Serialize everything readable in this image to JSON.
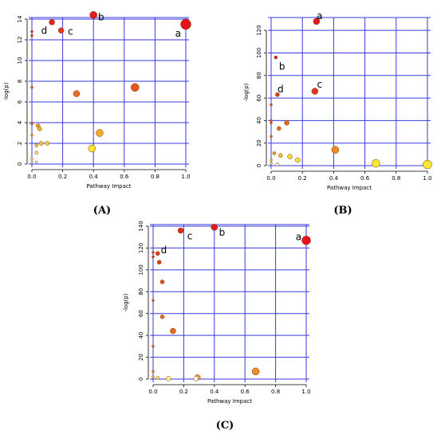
{
  "chart_data": [
    {
      "type": "scatter",
      "panel": "(A)",
      "xlabel": "Pathway Impact",
      "ylabel": "-log(p)",
      "xlim": [
        0,
        1.0
      ],
      "ylim": [
        0,
        14
      ],
      "xticks": [
        "0.0",
        "0.2",
        "0.4",
        "0.6",
        "0.8",
        "1.0"
      ],
      "yticks": [
        "0",
        "2",
        "4",
        "6",
        "8",
        "10",
        "12",
        "14"
      ],
      "grid": true,
      "points": [
        {
          "x": 1.0,
          "y": 13.5,
          "size": 6.5,
          "color": "#e8141c"
        },
        {
          "x": 0.4,
          "y": 14.4,
          "size": 4.5,
          "color": "#e21a1a"
        },
        {
          "x": 0.19,
          "y": 12.9,
          "size": 3.5,
          "color": "#e33a1c"
        },
        {
          "x": 0.13,
          "y": 13.7,
          "size": 3.5,
          "color": "#e2281c"
        },
        {
          "x": 0.0,
          "y": 12.8,
          "size": 1.5,
          "color": "#e2341c"
        },
        {
          "x": 0.0,
          "y": 12.4,
          "size": 1.5,
          "color": "#e2341c"
        },
        {
          "x": 0.0,
          "y": 7.4,
          "size": 1.5,
          "color": "#e8501c"
        },
        {
          "x": 0.67,
          "y": 7.4,
          "size": 5.0,
          "color": "#e8541e"
        },
        {
          "x": 0.29,
          "y": 6.8,
          "size": 4.0,
          "color": "#ea6a22"
        },
        {
          "x": 0.44,
          "y": 3.0,
          "size": 4.5,
          "color": "#f1ac28"
        },
        {
          "x": 0.39,
          "y": 1.5,
          "size": 4.5,
          "color": "#f7e538"
        },
        {
          "x": 0.0,
          "y": 3.9,
          "size": 1.5,
          "color": "#e8501c"
        },
        {
          "x": 0.04,
          "y": 3.7,
          "size": 2.5,
          "color": "#f0a02a"
        },
        {
          "x": 0.05,
          "y": 3.4,
          "size": 2.5,
          "color": "#f1b52e"
        },
        {
          "x": 0.0,
          "y": 2.8,
          "size": 1.5,
          "color": "#f0a02a"
        },
        {
          "x": 0.06,
          "y": 2.0,
          "size": 2.5,
          "color": "#f3c636"
        },
        {
          "x": 0.1,
          "y": 2.0,
          "size": 2.5,
          "color": "#f5d63a"
        },
        {
          "x": 0.03,
          "y": 1.8,
          "size": 2.0,
          "color": "#f5d63a"
        },
        {
          "x": 0.03,
          "y": 1.1,
          "size": 2.0,
          "color": "#f7e76e"
        },
        {
          "x": 0.0,
          "y": 0.5,
          "size": 1.5,
          "color": "#f9f19a"
        },
        {
          "x": 0.0,
          "y": 0.2,
          "size": 1.5,
          "color": "#fdfbe8"
        },
        {
          "x": 0.03,
          "y": 0.2,
          "size": 1.5,
          "color": "#fdfbe8"
        }
      ],
      "annotations": [
        {
          "text": "a",
          "x": 0.95,
          "y": 12.6
        },
        {
          "text": "b",
          "x": 0.45,
          "y": 14.2
        },
        {
          "text": "c",
          "x": 0.25,
          "y": 12.8
        },
        {
          "text": "d",
          "x": 0.08,
          "y": 12.9
        }
      ]
    },
    {
      "type": "scatter",
      "panel": "(B)",
      "xlabel": "Pathway Impact",
      "ylabel": "-log(p)",
      "xlim": [
        0,
        1.0
      ],
      "ylim": [
        0,
        130
      ],
      "xticks": [
        "0.0",
        "0.2",
        "0.4",
        "0.6",
        "0.8",
        "1.0"
      ],
      "yticks": [
        "0",
        "20",
        "40",
        "60",
        "80",
        "100",
        "120"
      ],
      "grid": true,
      "points": [
        {
          "x": 0.29,
          "y": 128,
          "size": 4.0,
          "color": "#e21a1a"
        },
        {
          "x": 0.03,
          "y": 96,
          "size": 2.0,
          "color": "#e2281c"
        },
        {
          "x": 0.28,
          "y": 66,
          "size": 4.0,
          "color": "#e2341c"
        },
        {
          "x": 0.04,
          "y": 63,
          "size": 2.5,
          "color": "#e33a1c"
        },
        {
          "x": 0.0,
          "y": 54,
          "size": 1.5,
          "color": "#e8501c"
        },
        {
          "x": 0.0,
          "y": 40,
          "size": 1.5,
          "color": "#e8501c"
        },
        {
          "x": 0.0,
          "y": 38,
          "size": 1.5,
          "color": "#e8541e"
        },
        {
          "x": 0.1,
          "y": 38,
          "size": 3.0,
          "color": "#ea6a22"
        },
        {
          "x": 0.05,
          "y": 33,
          "size": 2.5,
          "color": "#ea6a22"
        },
        {
          "x": 0.0,
          "y": 26,
          "size": 1.5,
          "color": "#ea6a22"
        },
        {
          "x": 0.41,
          "y": 14,
          "size": 4.5,
          "color": "#ef8c26"
        },
        {
          "x": 0.02,
          "y": 11,
          "size": 2.0,
          "color": "#f0a02a"
        },
        {
          "x": 0.06,
          "y": 9,
          "size": 2.5,
          "color": "#f3c636"
        },
        {
          "x": 0.12,
          "y": 8,
          "size": 3.0,
          "color": "#f5d63a"
        },
        {
          "x": 0.17,
          "y": 5,
          "size": 3.0,
          "color": "#f7e538"
        },
        {
          "x": 0.0,
          "y": 5,
          "size": 1.5,
          "color": "#f3c636"
        },
        {
          "x": 0.0,
          "y": 2,
          "size": 1.5,
          "color": "#f7e76e"
        },
        {
          "x": 0.04,
          "y": 1,
          "size": 2.0,
          "color": "#fdfbe8"
        },
        {
          "x": 0.67,
          "y": 2,
          "size": 5.0,
          "color": "#f7e538"
        },
        {
          "x": 1.0,
          "y": 1,
          "size": 5.5,
          "color": "#f7e538"
        }
      ],
      "annotations": [
        {
          "text": "a",
          "x": 0.31,
          "y": 133
        },
        {
          "text": "b",
          "x": 0.07,
          "y": 88
        },
        {
          "text": "c",
          "x": 0.31,
          "y": 72
        },
        {
          "text": "d",
          "x": 0.06,
          "y": 68
        }
      ]
    },
    {
      "type": "scatter",
      "panel": "(C)",
      "xlabel": "Pathway Impact",
      "ylabel": "-log(p)",
      "xlim": [
        0,
        1.0
      ],
      "ylim": [
        0,
        140
      ],
      "xticks": [
        "0.0",
        "0.2",
        "0.4",
        "0.6",
        "0.8",
        "1.0"
      ],
      "yticks": [
        "0",
        "20",
        "40",
        "60",
        "80",
        "100",
        "120",
        "140"
      ],
      "grid": true,
      "points": [
        {
          "x": 1.0,
          "y": 127,
          "size": 5.5,
          "color": "#e8141c"
        },
        {
          "x": 0.4,
          "y": 139,
          "size": 4.0,
          "color": "#e21a1a"
        },
        {
          "x": 0.18,
          "y": 136,
          "size": 3.5,
          "color": "#e2281c"
        },
        {
          "x": 0.03,
          "y": 115,
          "size": 2.5,
          "color": "#e2341c"
        },
        {
          "x": 0.0,
          "y": 116,
          "size": 1.5,
          "color": "#e2341c"
        },
        {
          "x": 0.0,
          "y": 112,
          "size": 1.5,
          "color": "#e2341c"
        },
        {
          "x": 0.04,
          "y": 107,
          "size": 2.5,
          "color": "#e33a1c"
        },
        {
          "x": 0.06,
          "y": 89,
          "size": 2.5,
          "color": "#e8501c"
        },
        {
          "x": 0.0,
          "y": 72,
          "size": 1.5,
          "color": "#e8501c"
        },
        {
          "x": 0.06,
          "y": 57,
          "size": 2.5,
          "color": "#ea6a22"
        },
        {
          "x": 0.13,
          "y": 44,
          "size": 3.5,
          "color": "#ea6a22"
        },
        {
          "x": 0.0,
          "y": 30,
          "size": 1.5,
          "color": "#ea6a22"
        },
        {
          "x": 0.0,
          "y": 7,
          "size": 1.5,
          "color": "#ef8c26"
        },
        {
          "x": 0.0,
          "y": 2,
          "size": 1.5,
          "color": "#f3c636"
        },
        {
          "x": 0.03,
          "y": 1,
          "size": 2.0,
          "color": "#f7e76e"
        },
        {
          "x": 0.1,
          "y": 0.5,
          "size": 3.0,
          "color": "#f9f19a"
        },
        {
          "x": 0.29,
          "y": 1.5,
          "size": 3.5,
          "color": "#f0a02a"
        },
        {
          "x": 0.28,
          "y": 0.5,
          "size": 3.0,
          "color": "#fdfbe8"
        },
        {
          "x": 0.67,
          "y": 7,
          "size": 4.5,
          "color": "#ef8c26"
        }
      ],
      "annotations": [
        {
          "text": "a",
          "x": 0.95,
          "y": 130
        },
        {
          "text": "b",
          "x": 0.45,
          "y": 134
        },
        {
          "text": "c",
          "x": 0.24,
          "y": 131
        },
        {
          "text": "d",
          "x": 0.07,
          "y": 118
        }
      ]
    }
  ]
}
